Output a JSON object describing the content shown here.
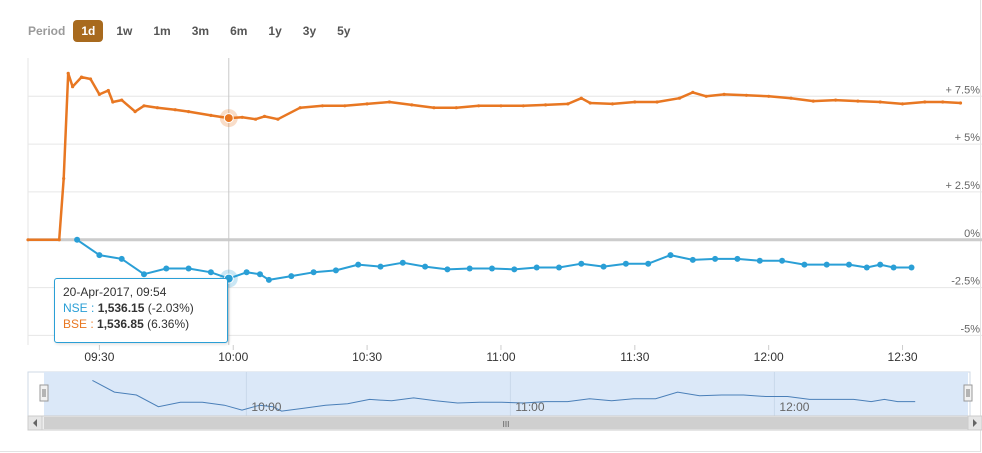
{
  "period": {
    "label": "Period",
    "options": [
      "1d",
      "1w",
      "1m",
      "3m",
      "6m",
      "1y",
      "3y",
      "5y"
    ],
    "selected": "1d"
  },
  "colors": {
    "nse": "#2a9fd6",
    "bse": "#e87722",
    "period_active": "#a86a1e",
    "navigator_fill": "#dbe8f8",
    "navigator_line": "#4a7fb8"
  },
  "tooltip": {
    "datetime": "20-Apr-2017, 09:54",
    "nse_label": "NSE :",
    "nse_value": "1,536.15",
    "nse_change": "(-2.03%)",
    "bse_label": "BSE :",
    "bse_value": "1,536.85",
    "bse_change": "(6.36%)"
  },
  "navigator": {
    "tick_labels": [
      "10:00",
      "11:00",
      "12:00"
    ],
    "scroll_grip": "III"
  },
  "chart_data": {
    "type": "line",
    "x_tick_labels": [
      "09:30",
      "10:00",
      "10:30",
      "11:00",
      "11:30",
      "12:00",
      "12:30"
    ],
    "y_tick_labels": [
      "+ 7.5%",
      "+ 5%",
      "+ 2.5%",
      "0%",
      "-2.5%",
      "-5%"
    ],
    "ylim": [
      -5.5,
      9.5
    ],
    "y_ticks": [
      7.5,
      5,
      2.5,
      0,
      -2.5,
      -5
    ],
    "x_range_minutes": [
      554,
      764
    ],
    "series": [
      {
        "name": "NSE",
        "color": "#2a9fd6",
        "points": [
          [
            565,
            0
          ],
          [
            570,
            -0.8
          ],
          [
            575,
            -1.0
          ],
          [
            580,
            -1.8
          ],
          [
            585,
            -1.5
          ],
          [
            590,
            -1.5
          ],
          [
            595,
            -1.7
          ],
          [
            599,
            -2.03
          ],
          [
            603,
            -1.7
          ],
          [
            606,
            -1.8
          ],
          [
            608,
            -2.1
          ],
          [
            613,
            -1.9
          ],
          [
            618,
            -1.7
          ],
          [
            623,
            -1.6
          ],
          [
            628,
            -1.3
          ],
          [
            633,
            -1.4
          ],
          [
            638,
            -1.2
          ],
          [
            643,
            -1.4
          ],
          [
            648,
            -1.55
          ],
          [
            653,
            -1.5
          ],
          [
            658,
            -1.5
          ],
          [
            663,
            -1.55
          ],
          [
            668,
            -1.45
          ],
          [
            673,
            -1.45
          ],
          [
            678,
            -1.25
          ],
          [
            683,
            -1.4
          ],
          [
            688,
            -1.25
          ],
          [
            693,
            -1.25
          ],
          [
            698,
            -0.8
          ],
          [
            703,
            -1.05
          ],
          [
            708,
            -1.0
          ],
          [
            713,
            -1.0
          ],
          [
            718,
            -1.1
          ],
          [
            723,
            -1.1
          ],
          [
            728,
            -1.3
          ],
          [
            733,
            -1.3
          ],
          [
            738,
            -1.3
          ],
          [
            742,
            -1.45
          ],
          [
            745,
            -1.3
          ],
          [
            748,
            -1.45
          ],
          [
            752,
            -1.45
          ]
        ]
      },
      {
        "name": "BSE",
        "color": "#e87722",
        "points": [
          [
            554,
            0
          ],
          [
            561,
            0
          ],
          [
            562,
            3.2
          ],
          [
            563,
            8.7
          ],
          [
            564,
            8.0
          ],
          [
            566,
            8.5
          ],
          [
            568,
            8.4
          ],
          [
            570,
            7.6
          ],
          [
            572,
            7.8
          ],
          [
            573,
            7.2
          ],
          [
            575,
            7.3
          ],
          [
            578,
            6.7
          ],
          [
            580,
            7.0
          ],
          [
            583,
            6.9
          ],
          [
            587,
            6.8
          ],
          [
            590,
            6.7
          ],
          [
            595,
            6.5
          ],
          [
            599,
            6.36
          ],
          [
            602,
            6.4
          ],
          [
            605,
            6.3
          ],
          [
            607,
            6.45
          ],
          [
            610,
            6.3
          ],
          [
            615,
            6.9
          ],
          [
            620,
            7.0
          ],
          [
            625,
            7.0
          ],
          [
            630,
            7.1
          ],
          [
            635,
            7.2
          ],
          [
            640,
            7.05
          ],
          [
            645,
            6.9
          ],
          [
            650,
            6.9
          ],
          [
            655,
            7.0
          ],
          [
            660,
            7.0
          ],
          [
            665,
            7.0
          ],
          [
            670,
            7.05
          ],
          [
            675,
            7.1
          ],
          [
            678,
            7.4
          ],
          [
            680,
            7.15
          ],
          [
            685,
            7.1
          ],
          [
            690,
            7.2
          ],
          [
            695,
            7.2
          ],
          [
            700,
            7.4
          ],
          [
            703,
            7.7
          ],
          [
            706,
            7.5
          ],
          [
            710,
            7.6
          ],
          [
            715,
            7.55
          ],
          [
            720,
            7.5
          ],
          [
            725,
            7.4
          ],
          [
            730,
            7.25
          ],
          [
            735,
            7.3
          ],
          [
            740,
            7.25
          ],
          [
            745,
            7.2
          ],
          [
            750,
            7.1
          ],
          [
            755,
            7.2
          ],
          [
            759,
            7.2
          ],
          [
            763,
            7.15
          ]
        ]
      }
    ],
    "crosshair_time": 599
  }
}
